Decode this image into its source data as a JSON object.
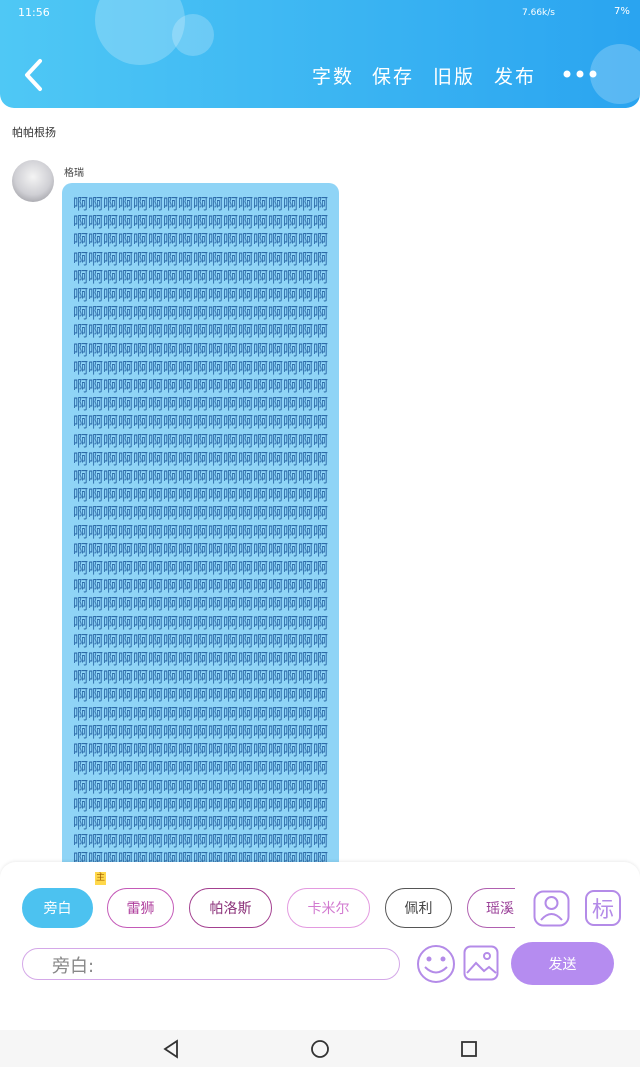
{
  "status_bar": {
    "time": "11:56",
    "speed": "7.66k/s",
    "battery": "7%"
  },
  "header": {
    "actions": [
      "字数",
      "保存",
      "旧版",
      "发布"
    ]
  },
  "story_title": "帕帕根扬",
  "message": {
    "sender": "格瑞",
    "text": "啊啊啊啊啊啊啊啊啊啊啊啊啊啊啊啊啊啊啊啊啊啊啊啊啊啊啊啊啊啊啊啊啊啊啊啊啊啊啊啊啊啊啊啊啊啊啊啊啊啊啊啊啊啊啊啊啊啊啊啊啊啊啊啊啊啊啊啊啊啊啊啊啊啊啊啊啊啊啊啊啊啊啊啊啊啊啊啊啊啊啊啊啊啊啊啊啊啊啊啊啊啊啊啊啊啊啊啊啊啊啊啊啊啊啊啊啊啊啊啊啊啊啊啊啊啊啊啊啊啊啊啊啊啊啊啊啊啊啊啊啊啊啊啊啊啊啊啊啊啊啊啊啊啊啊啊啊啊啊啊啊啊啊啊啊啊啊啊啊啊啊啊啊啊啊啊啊啊啊啊啊啊啊啊啊啊啊啊啊啊啊啊啊啊啊啊啊啊啊啊啊啊啊啊啊啊啊啊啊啊啊啊啊啊啊啊啊啊啊啊啊啊啊啊啊啊啊啊啊啊啊啊啊啊啊啊啊啊啊啊啊啊啊啊啊啊啊啊啊啊啊啊啊啊啊啊啊啊啊啊啊啊啊啊啊啊啊啊啊啊啊啊啊啊啊啊啊啊啊啊啊啊啊啊啊啊啊啊啊啊啊啊啊啊啊啊啊啊啊啊啊啊啊啊啊啊啊啊啊啊啊啊啊啊啊啊啊啊啊啊啊啊啊啊啊啊啊啊啊啊啊啊啊啊啊啊啊啊啊啊啊啊啊啊啊啊啊啊啊啊啊啊啊啊啊啊啊啊啊啊啊啊啊啊啊啊啊啊啊啊啊啊啊啊啊啊啊啊啊啊啊啊啊啊啊啊啊啊啊啊啊啊啊啊啊啊啊啊啊啊啊啊啊啊啊啊啊啊啊啊啊啊啊啊啊啊啊啊啊啊啊啊啊啊啊啊啊啊啊啊啊啊啊啊啊啊啊啊啊啊啊啊啊啊啊啊啊啊啊啊啊啊啊啊啊啊啊啊啊啊啊啊啊啊啊啊啊啊啊啊啊啊啊啊啊啊啊啊啊啊啊啊啊啊啊啊啊啊啊啊啊啊啊啊啊啊啊啊啊啊啊啊啊啊啊啊啊啊啊啊啊啊啊啊啊啊啊啊啊啊啊啊啊啊啊啊啊啊啊啊啊啊啊啊啊啊啊啊啊啊啊啊啊啊啊啊啊啊啊啊啊啊啊啊啊啊啊啊啊啊啊啊啊啊啊啊啊啊啊啊啊啊啊啊啊啊啊啊啊啊啊啊啊啊啊啊啊啊啊啊啊啊啊啊啊啊啊啊啊啊啊啊啊啊啊啊啊啊啊啊啊啊啊啊啊啊啊啊啊啊啊啊啊啊啊啊啊啊啊啊啊啊啊啊啊啊啊啊啊啊啊啊啊啊啊啊啊啊啊啊啊啊啊啊啊啊啊啊啊啊啊啊啊啊啊啊啊啊啊啊啊啊啊啊啊啊啊啊啊啊啊啊啊啊啊啊啊啊啊啊啊啊啊啊啊啊啊啊啊啊啊啊啊啊啊"
  },
  "roles": [
    {
      "name": "旁白"
    },
    {
      "name": "雷狮",
      "badge": "主"
    },
    {
      "name": "帕洛斯"
    },
    {
      "name": "卡米尔"
    },
    {
      "name": "佩利"
    },
    {
      "name": "瑶溪"
    }
  ],
  "role_tag_button": "标",
  "input": {
    "placeholder": "旁白:"
  },
  "send_button": "发送"
}
